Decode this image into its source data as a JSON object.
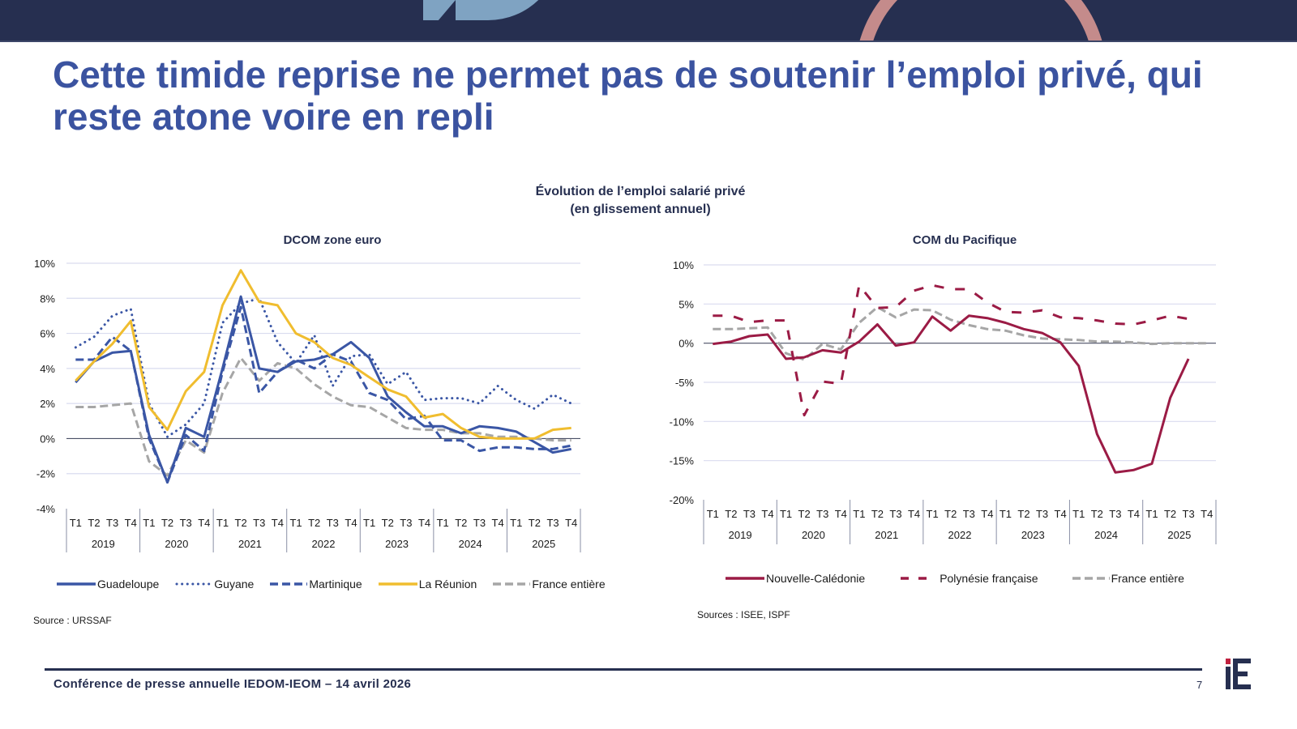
{
  "slide": {
    "title": "Cette timide reprise ne permet pas de soutenir l’emploi privé, qui reste atone voire en repli",
    "chart_title_line1": "Évolution de l’emploi salarié privé",
    "chart_title_line2": "(en glissement annuel)",
    "footer": "Conférence de presse annuelle IEDOM-IEOM – 14 avril 2026",
    "page_number": "7",
    "logo_text": "iE",
    "colors": {
      "navy": "#262f50",
      "title_blue": "#3b53a0",
      "series_blue": "#3a56a5",
      "series_yellow": "#f0bd2f",
      "series_gray": "#a6a6a6",
      "series_crimson": "#9b1b45",
      "logo_red": "#c0213f"
    }
  },
  "chart_data": [
    {
      "type": "line",
      "title": "DCOM zone euro",
      "xlabel": "",
      "ylabel": "",
      "ylim": [
        -4,
        10
      ],
      "yticks": [
        10,
        8,
        6,
        4,
        2,
        0,
        -2,
        -4
      ],
      "ytick_labels": [
        "10%",
        "8%",
        "6%",
        "4%",
        "2%",
        "0%",
        "-2%",
        "-4%"
      ],
      "grid": true,
      "legend_position": "bottom",
      "quarters": [
        "T1",
        "T2",
        "T3",
        "T4"
      ],
      "years": [
        "2019",
        "2020",
        "2021",
        "2022",
        "2023",
        "2024",
        "2025"
      ],
      "series": [
        {
          "name": "Guadeloupe",
          "style": "solid",
          "color": "#3a56a5",
          "values": [
            3.2,
            4.4,
            4.9,
            5.0,
            0.2,
            -2.5,
            0.6,
            0.1,
            4.0,
            8.1,
            4.0,
            3.8,
            4.4,
            4.5,
            4.8,
            5.5,
            4.6,
            2.4,
            1.5,
            0.7,
            0.7,
            0.3,
            0.7,
            0.6,
            0.4,
            -0.2,
            -0.8,
            -0.6
          ]
        },
        {
          "name": "Guyane",
          "style": "dotted",
          "color": "#3a56a5",
          "values": [
            5.2,
            5.8,
            7.0,
            7.4,
            2.0,
            0.1,
            0.8,
            2.0,
            6.6,
            7.7,
            8.0,
            5.5,
            4.3,
            5.9,
            3.0,
            4.7,
            4.8,
            3.1,
            3.8,
            2.2,
            2.3,
            2.3,
            2.0,
            3.0,
            2.2,
            1.7,
            2.5,
            2.0
          ]
        },
        {
          "name": "Martinique",
          "style": "dashed",
          "color": "#3a56a5",
          "values": [
            4.5,
            4.5,
            5.8,
            5.0,
            0.0,
            -2.5,
            0.2,
            -0.7,
            3.8,
            7.5,
            2.6,
            3.8,
            4.5,
            4.0,
            4.8,
            4.4,
            2.6,
            2.2,
            1.1,
            1.3,
            -0.1,
            -0.1,
            -0.7,
            -0.5,
            -0.5,
            -0.6,
            -0.6,
            -0.4
          ]
        },
        {
          "name": "La Réunion",
          "style": "solid",
          "color": "#f0bd2f",
          "values": [
            3.3,
            4.4,
            5.4,
            6.7,
            1.8,
            0.5,
            2.7,
            3.8,
            7.6,
            9.6,
            7.8,
            7.6,
            6.0,
            5.5,
            4.6,
            4.2,
            3.5,
            2.8,
            2.4,
            1.2,
            1.4,
            0.6,
            0.1,
            0.0,
            0.0,
            0.0,
            0.5,
            0.6
          ]
        },
        {
          "name": "France entière",
          "style": "dashed",
          "color": "#a6a6a6",
          "values": [
            1.8,
            1.8,
            1.9,
            2.0,
            -1.3,
            -2.1,
            -0.1,
            -0.8,
            2.6,
            4.6,
            3.3,
            4.3,
            4.0,
            3.1,
            2.4,
            1.9,
            1.8,
            1.2,
            0.6,
            0.5,
            0.5,
            0.3,
            0.3,
            0.1,
            0.1,
            0.0,
            -0.1,
            -0.1
          ]
        }
      ],
      "source": "Source : URSSAF"
    },
    {
      "type": "line",
      "title": "COM du Pacifique",
      "xlabel": "",
      "ylabel": "",
      "ylim": [
        -20,
        10
      ],
      "yticks": [
        10,
        5,
        0,
        -5,
        -10,
        -15,
        -20
      ],
      "ytick_labels": [
        "10%",
        "5%",
        "0%",
        "-5%",
        "-10%",
        "-15%",
        "-20%"
      ],
      "grid": true,
      "legend_position": "bottom",
      "quarters": [
        "T1",
        "T2",
        "T3",
        "T4"
      ],
      "years": [
        "2019",
        "2020",
        "2021",
        "2022",
        "2023",
        "2024",
        "2025"
      ],
      "series": [
        {
          "name": "Nouvelle-Calédonie",
          "style": "solid",
          "color": "#9b1b45",
          "values": [
            -0.1,
            0.2,
            0.9,
            1.1,
            -2.0,
            -1.8,
            -0.9,
            -1.2,
            0.2,
            2.4,
            -0.3,
            0.1,
            3.4,
            1.6,
            3.5,
            3.2,
            2.6,
            1.8,
            1.3,
            0.1,
            -2.9,
            -11.6,
            -16.5,
            -16.2,
            -15.4,
            -7.0,
            -2.0
          ]
        },
        {
          "name": "Polynésie française",
          "style": "longdash",
          "color": "#9b1b45",
          "values": [
            3.5,
            3.5,
            2.7,
            2.9,
            2.9,
            -9.2,
            -4.9,
            -5.2,
            7.4,
            4.5,
            4.6,
            6.7,
            7.4,
            6.9,
            6.9,
            5.2,
            4.0,
            3.9,
            4.2,
            3.3,
            3.2,
            2.9,
            2.5,
            2.4,
            2.9,
            3.5,
            3.1
          ]
        },
        {
          "name": "France entière",
          "style": "dashed",
          "color": "#a6a6a6",
          "values": [
            1.8,
            1.8,
            1.9,
            2.0,
            -1.3,
            -2.1,
            -0.1,
            -0.8,
            2.6,
            4.6,
            3.3,
            4.3,
            4.2,
            3.0,
            2.3,
            1.8,
            1.6,
            1.0,
            0.6,
            0.5,
            0.4,
            0.2,
            0.2,
            0.1,
            -0.1,
            0.0,
            0.0,
            0.0
          ]
        }
      ],
      "source": "Sources : ISEE, ISPF"
    }
  ]
}
